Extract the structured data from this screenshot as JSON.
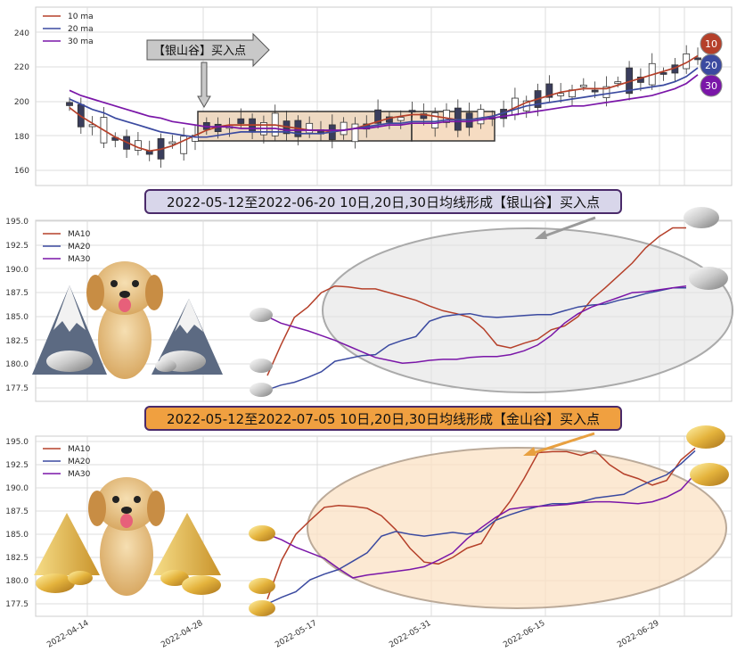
{
  "colors": {
    "ma10": "#b5402a",
    "ma20": "#3b4aa0",
    "ma30": "#7a16a8",
    "silver_banner_bg": "#d8d6ea",
    "gold_banner_bg": "#f0a040",
    "silver_zone": "#e8e8e8",
    "gold_zone": "#fbe6cc",
    "candle_box": "#eed9c2"
  },
  "dates": [
    "2022-04-14",
    "2022-04-28",
    "2022-05-17",
    "2022-05-31",
    "2022-06-15",
    "2022-06-29"
  ],
  "panel1": {
    "legend": [
      "10 ma",
      "20 ma",
      "30 ma"
    ],
    "yticks": [
      "160",
      "180",
      "200",
      "220",
      "240"
    ],
    "annotation": "【银山谷】买入点",
    "badges": [
      "10",
      "20",
      "30"
    ]
  },
  "banner1": "2022-05-12至2022-06-20 10日,20日,30日均线形成【银山谷】买入点",
  "panel2": {
    "legend": [
      "MA10",
      "MA20",
      "MA30"
    ],
    "yticks": [
      "177.5",
      "180.0",
      "182.5",
      "185.0",
      "187.5",
      "190.0",
      "192.5",
      "195.0"
    ]
  },
  "banner2": "2022-05-12至2022-07-05 10日,20日,30日均线形成【金山谷】买入点",
  "panel3": {
    "legend": [
      "MA10",
      "MA20",
      "MA30"
    ],
    "yticks": [
      "177.5",
      "180.0",
      "182.5",
      "185.0",
      "187.5",
      "190.0",
      "192.5",
      "195.0"
    ]
  },
  "chart_data": [
    {
      "type": "candlestick",
      "ylim": [
        150,
        252
      ],
      "series": [
        {
          "name": "10 ma",
          "values": [
            196,
            191,
            187,
            183,
            179,
            176,
            173,
            171,
            172,
            174,
            177,
            180,
            183,
            185,
            186,
            186,
            186,
            186,
            186,
            185,
            184,
            183,
            183,
            182,
            183,
            184,
            186,
            188,
            190,
            191,
            192,
            192,
            191,
            190,
            189,
            189,
            190,
            191,
            193,
            196,
            199,
            201,
            203,
            205,
            206,
            207,
            207,
            207,
            209,
            211,
            213,
            215,
            217,
            219,
            222,
            226
          ]
        },
        {
          "name": "20 ma",
          "values": [
            201,
            198,
            195,
            193,
            190,
            188,
            186,
            184,
            182,
            181,
            180,
            179,
            179,
            180,
            181,
            182,
            182,
            182,
            182,
            182,
            181,
            181,
            181,
            182,
            183,
            184,
            185,
            186,
            187,
            187,
            188,
            188,
            188,
            189,
            189,
            189,
            190,
            191,
            193,
            195,
            197,
            198,
            199,
            200,
            201,
            202,
            203,
            204,
            205,
            206,
            207,
            208,
            209,
            211,
            214,
            219
          ]
        },
        {
          "name": "30 ma",
          "values": [
            206,
            203,
            201,
            199,
            197,
            195,
            193,
            191,
            190,
            188,
            187,
            186,
            185,
            185,
            185,
            184,
            184,
            184,
            184,
            183,
            183,
            183,
            183,
            183,
            183,
            184,
            184,
            185,
            186,
            186,
            187,
            187,
            187,
            188,
            188,
            188,
            189,
            190,
            191,
            192,
            193,
            194,
            195,
            196,
            197,
            197,
            198,
            199,
            200,
            201,
            202,
            203,
            205,
            207,
            210,
            215
          ]
        }
      ]
    },
    {
      "type": "line",
      "ylim": [
        176,
        195
      ],
      "series": [
        {
          "name": "MA10",
          "values": [
            178.8,
            182.0,
            184.9,
            186.0,
            187.5,
            188.2,
            188.1,
            187.9,
            187.9,
            187.5,
            187.1,
            186.7,
            186.1,
            185.6,
            185.3,
            184.9,
            183.7,
            182.0,
            181.7,
            182.2,
            182.6,
            183.6,
            184.0,
            185.0,
            186.8,
            188.0,
            189.3,
            190.6,
            192.2,
            193.4,
            194.3,
            194.3
          ]
        },
        {
          "name": "MA20",
          "values": [
            177.3,
            177.8,
            178.1,
            178.6,
            179.2,
            180.3,
            180.6,
            180.9,
            181.0,
            182.0,
            182.5,
            182.9,
            184.5,
            185.0,
            185.2,
            185.3,
            185.0,
            184.9,
            185.0,
            185.1,
            185.2,
            185.2,
            185.6,
            186.0,
            186.2,
            186.3,
            186.7,
            187.0,
            187.4,
            187.7,
            188.0,
            188.0
          ]
        },
        {
          "name": "MA30",
          "values": [
            185.0,
            184.3,
            183.9,
            183.5,
            183.0,
            182.5,
            181.9,
            181.3,
            180.7,
            180.4,
            180.1,
            180.2,
            180.4,
            180.5,
            180.5,
            180.7,
            180.8,
            180.8,
            181.0,
            181.4,
            182.0,
            183.0,
            184.3,
            185.3,
            186.0,
            186.5,
            187.0,
            187.5,
            187.6,
            187.8,
            188.0,
            188.2
          ]
        }
      ]
    },
    {
      "type": "line",
      "ylim": [
        176,
        195.5
      ],
      "series": [
        {
          "name": "MA10",
          "values": [
            178.0,
            182.2,
            185.0,
            186.5,
            187.9,
            188.1,
            188.0,
            187.8,
            187.0,
            185.5,
            183.5,
            182.0,
            181.8,
            182.5,
            183.5,
            184.0,
            186.5,
            188.5,
            191.0,
            193.8,
            193.9,
            193.9,
            193.5,
            194.0,
            192.5,
            191.5,
            191.0,
            190.3,
            190.8,
            193.0,
            194.3
          ]
        },
        {
          "name": "MA20",
          "values": [
            177.5,
            178.2,
            178.8,
            180.1,
            180.7,
            181.2,
            182.1,
            183.0,
            184.8,
            185.3,
            185.0,
            184.8,
            185.0,
            185.2,
            185.0,
            185.3,
            186.5,
            187.1,
            187.6,
            188.0,
            188.3,
            188.3,
            188.5,
            188.9,
            189.1,
            189.3,
            190.1,
            190.8,
            191.4,
            192.6,
            194.0
          ]
        },
        {
          "name": "MA30",
          "values": [
            185.0,
            184.4,
            183.6,
            183.0,
            182.4,
            181.3,
            180.3,
            180.6,
            180.8,
            181.0,
            181.2,
            181.5,
            182.2,
            183.0,
            184.5,
            185.7,
            186.8,
            187.7,
            187.9,
            188.0,
            188.1,
            188.2,
            188.4,
            188.5,
            188.5,
            188.4,
            188.3,
            188.5,
            189.0,
            189.8,
            191.5
          ]
        }
      ]
    }
  ]
}
